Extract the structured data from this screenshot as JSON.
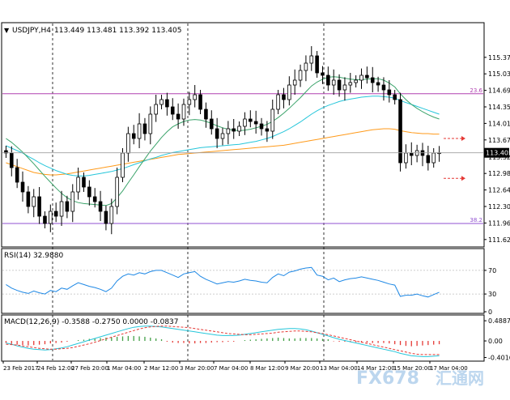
{
  "chart_data": [
    {
      "type": "candlestick",
      "header": {
        "symbol": "USDJPY,H4",
        "ohlc": "113.449 113.481 113.392 113.405"
      },
      "ylim": [
        111.55,
        115.85
      ],
      "y_ticks": [
        "115.370",
        "115.030",
        "114.690",
        "114.350",
        "114.010",
        "113.670",
        "113.320",
        "112.980",
        "112.640",
        "112.300",
        "111.960",
        "111.620"
      ],
      "current_price": "113.405",
      "fib_levels": [
        {
          "label": "23.6",
          "value": 114.62,
          "color": "#b040b0"
        },
        {
          "label": "38.2",
          "value": 111.95,
          "color": "#9050d0"
        }
      ],
      "target_levels": [
        113.7,
        112.88
      ],
      "x_ticks": [
        "23 Feb 2017",
        "24 Feb 12:00",
        "27 Feb 20:00",
        "1 Mar 04:00",
        "2 Mar 12:00",
        "3 Mar 20:00",
        "7 Mar 04:00",
        "8 Mar 12:00",
        "9 Mar 20:00",
        "13 Mar 04:00",
        "14 Mar 12:00",
        "15 Mar 20:00",
        "17 Mar 04:00"
      ],
      "series": {
        "close": [
          113.4,
          113.1,
          112.8,
          112.6,
          112.3,
          112.5,
          112.1,
          111.95,
          112.2,
          112.1,
          112.4,
          112.2,
          112.6,
          112.9,
          112.7,
          112.5,
          112.4,
          112.2,
          111.95,
          112.3,
          112.9,
          113.4,
          113.8,
          113.7,
          114.0,
          113.8,
          114.2,
          114.4,
          114.5,
          114.35,
          114.2,
          114.1,
          114.4,
          114.5,
          114.6,
          114.3,
          114.1,
          113.9,
          113.7,
          113.8,
          113.9,
          113.85,
          113.95,
          114.1,
          114.05,
          114.0,
          113.9,
          113.85,
          114.3,
          114.6,
          114.5,
          114.8,
          114.9,
          115.1,
          115.25,
          115.4,
          115.05,
          115.0,
          114.8,
          114.9,
          114.7,
          114.8,
          114.85,
          114.9,
          115.0,
          114.95,
          114.85,
          114.8,
          114.7,
          114.6,
          114.5,
          113.2,
          113.4,
          113.35,
          113.45,
          113.35,
          113.2,
          113.4,
          113.405
        ]
      },
      "ma_series": [
        {
          "color": "#ff9a1a",
          "values": [
            113.2,
            113.16,
            113.12,
            113.08,
            113.04,
            113.0,
            112.98,
            112.96,
            112.95,
            112.95,
            112.96,
            112.97,
            112.99,
            113.01,
            113.03,
            113.05,
            113.07,
            113.09,
            113.11,
            113.13,
            113.15,
            113.17,
            113.19,
            113.21,
            113.23,
            113.25,
            113.27,
            113.29,
            113.31,
            113.33,
            113.35,
            113.37,
            113.38,
            113.39,
            113.4,
            113.41,
            113.42,
            113.43,
            113.44,
            113.45,
            113.46,
            113.47,
            113.48,
            113.49,
            113.5,
            113.51,
            113.52,
            113.53,
            113.54,
            113.55,
            113.56,
            113.58,
            113.6,
            113.62,
            113.64,
            113.66,
            113.68,
            113.7,
            113.72,
            113.74,
            113.76,
            113.78,
            113.8,
            113.82,
            113.84,
            113.86,
            113.88,
            113.89,
            113.9,
            113.9,
            113.89,
            113.86,
            113.84,
            113.82,
            113.81,
            113.8,
            113.8,
            113.79,
            113.79
          ]
        },
        {
          "color": "#26c6da",
          "values": [
            113.55,
            113.5,
            113.45,
            113.4,
            113.33,
            113.27,
            113.2,
            113.14,
            113.09,
            113.04,
            113.0,
            112.96,
            112.94,
            112.93,
            112.93,
            112.94,
            112.96,
            112.98,
            113.0,
            113.02,
            113.05,
            113.08,
            113.12,
            113.16,
            113.2,
            113.24,
            113.28,
            113.31,
            113.35,
            113.38,
            113.41,
            113.43,
            113.45,
            113.47,
            113.49,
            113.51,
            113.52,
            113.53,
            113.54,
            113.55,
            113.56,
            113.57,
            113.58,
            113.6,
            113.62,
            113.64,
            113.67,
            113.7,
            113.74,
            113.79,
            113.84,
            113.9,
            113.97,
            114.04,
            114.12,
            114.2,
            114.27,
            114.33,
            114.38,
            114.42,
            114.46,
            114.49,
            114.51,
            114.53,
            114.55,
            114.56,
            114.57,
            114.57,
            114.56,
            114.55,
            114.53,
            114.48,
            114.44,
            114.4,
            114.36,
            114.32,
            114.28,
            114.24,
            114.2
          ]
        },
        {
          "color": "#3aa36a",
          "values": [
            113.7,
            113.62,
            113.52,
            113.42,
            113.3,
            113.18,
            113.05,
            112.92,
            112.8,
            112.68,
            112.57,
            112.48,
            112.42,
            112.38,
            112.36,
            112.35,
            112.34,
            112.33,
            112.32,
            112.36,
            112.48,
            112.62,
            112.79,
            112.95,
            113.12,
            113.28,
            113.44,
            113.58,
            113.72,
            113.84,
            113.94,
            114.0,
            114.05,
            114.08,
            114.09,
            114.08,
            114.05,
            114.01,
            113.96,
            113.92,
            113.89,
            113.87,
            113.86,
            113.87,
            113.89,
            113.92,
            113.95,
            113.99,
            114.05,
            114.13,
            114.22,
            114.32,
            114.43,
            114.54,
            114.66,
            114.78,
            114.86,
            114.92,
            114.96,
            114.97,
            114.96,
            114.94,
            114.92,
            114.91,
            114.91,
            114.92,
            114.93,
            114.93,
            114.9,
            114.84,
            114.76,
            114.62,
            114.5,
            114.4,
            114.32,
            114.25,
            114.19,
            114.14,
            114.1
          ]
        }
      ]
    },
    {
      "type": "line",
      "label": "RSI(14) 32.9880",
      "ylim": [
        0,
        100
      ],
      "y_ticks": [
        "70",
        "30",
        "0"
      ],
      "levels": [
        70,
        30
      ],
      "values": [
        46,
        40,
        36,
        33,
        31,
        35,
        32,
        30,
        36,
        34,
        40,
        38,
        44,
        49,
        46,
        43,
        41,
        38,
        34,
        40,
        52,
        60,
        64,
        62,
        66,
        64,
        68,
        70,
        70,
        66,
        62,
        58,
        64,
        66,
        68,
        60,
        55,
        51,
        47,
        49,
        51,
        50,
        52,
        55,
        53,
        52,
        50,
        49,
        58,
        64,
        61,
        67,
        69,
        72,
        74,
        75,
        62,
        60,
        54,
        57,
        51,
        54,
        56,
        57,
        59,
        57,
        55,
        53,
        50,
        47,
        45,
        26,
        28,
        28,
        30,
        27,
        25,
        29,
        33
      ]
    },
    {
      "type": "bar",
      "label": "MACD(12,26,9) -0.3588 -0.2750 0.0000 -0.0837",
      "ylim": [
        -0.45,
        0.55
      ],
      "y_ticks": [
        "0.4887",
        "0.00",
        "-0.4016"
      ],
      "histogram": [
        -0.05,
        -0.07,
        -0.09,
        -0.1,
        -0.11,
        -0.1,
        -0.09,
        -0.08,
        -0.06,
        -0.05,
        -0.04,
        -0.02,
        0.0,
        0.02,
        0.03,
        0.05,
        0.06,
        0.07,
        0.08,
        0.09,
        0.1,
        0.11,
        0.12,
        0.12,
        0.11,
        0.1,
        0.08,
        0.06,
        0.04,
        -0.02,
        -0.04,
        -0.05,
        -0.05,
        -0.06,
        -0.06,
        -0.05,
        -0.05,
        -0.04,
        -0.03,
        -0.03,
        -0.02,
        -0.02,
        0.0,
        0.02,
        0.03,
        0.04,
        0.05,
        0.06,
        0.07,
        0.08,
        0.07,
        0.06,
        0.06,
        0.07,
        0.07,
        0.07,
        0.06,
        0.05,
        0.04,
        -0.01,
        -0.02,
        -0.02,
        -0.03,
        -0.03,
        -0.04,
        -0.04,
        -0.05,
        -0.05,
        -0.05,
        -0.06,
        -0.08,
        -0.1,
        -0.12,
        -0.13,
        -0.12,
        -0.11,
        -0.1,
        -0.09,
        -0.08
      ],
      "macd": [
        -0.05,
        -0.08,
        -0.12,
        -0.15,
        -0.18,
        -0.2,
        -0.21,
        -0.22,
        -0.21,
        -0.19,
        -0.17,
        -0.14,
        -0.1,
        -0.06,
        -0.02,
        0.02,
        0.06,
        0.1,
        0.14,
        0.18,
        0.22,
        0.26,
        0.3,
        0.33,
        0.35,
        0.36,
        0.36,
        0.35,
        0.34,
        0.32,
        0.3,
        0.28,
        0.26,
        0.24,
        0.22,
        0.2,
        0.18,
        0.16,
        0.14,
        0.13,
        0.13,
        0.13,
        0.14,
        0.16,
        0.18,
        0.2,
        0.22,
        0.24,
        0.26,
        0.28,
        0.29,
        0.3,
        0.3,
        0.29,
        0.27,
        0.24,
        0.2,
        0.16,
        0.12,
        0.08,
        0.04,
        0.01,
        -0.02,
        -0.05,
        -0.08,
        -0.11,
        -0.14,
        -0.17,
        -0.2,
        -0.23,
        -0.26,
        -0.3,
        -0.33,
        -0.36,
        -0.37,
        -0.38,
        -0.38,
        -0.37,
        -0.36
      ],
      "signal": [
        -0.08,
        -0.09,
        -0.1,
        -0.12,
        -0.14,
        -0.16,
        -0.18,
        -0.19,
        -0.2,
        -0.2,
        -0.19,
        -0.18,
        -0.16,
        -0.13,
        -0.1,
        -0.07,
        -0.03,
        0.01,
        0.05,
        0.09,
        0.13,
        0.17,
        0.21,
        0.25,
        0.29,
        0.32,
        0.34,
        0.35,
        0.36,
        0.36,
        0.35,
        0.34,
        0.33,
        0.32,
        0.3,
        0.28,
        0.26,
        0.24,
        0.22,
        0.2,
        0.18,
        0.17,
        0.16,
        0.15,
        0.15,
        0.16,
        0.17,
        0.18,
        0.19,
        0.21,
        0.22,
        0.23,
        0.24,
        0.24,
        0.23,
        0.22,
        0.2,
        0.18,
        0.15,
        0.12,
        0.09,
        0.06,
        0.03,
        0.0,
        -0.03,
        -0.06,
        -0.09,
        -0.12,
        -0.15,
        -0.18,
        -0.21,
        -0.24,
        -0.27,
        -0.3,
        -0.32,
        -0.33,
        -0.33,
        -0.33,
        -0.33
      ]
    }
  ],
  "watermark": {
    "brand": "FX678",
    "cn": "汇通网"
  }
}
